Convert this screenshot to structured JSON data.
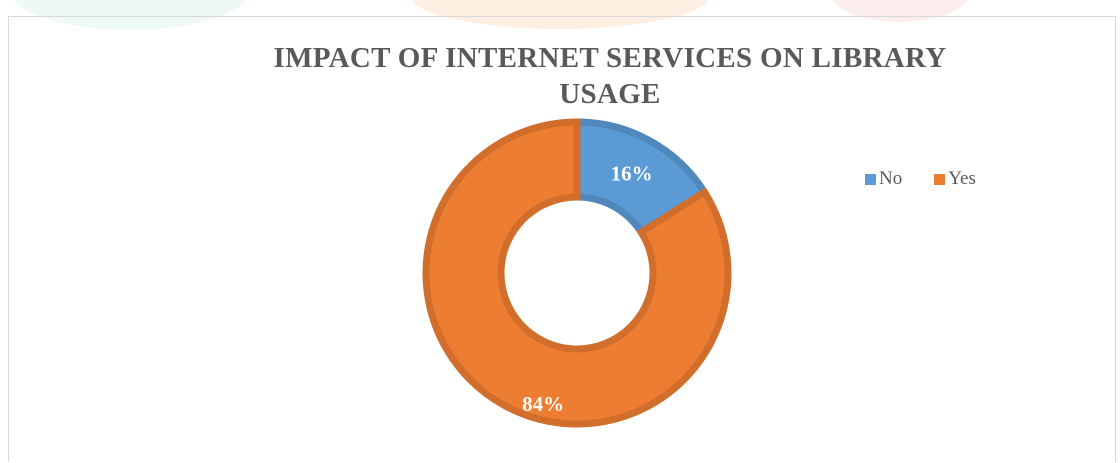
{
  "chart_data": {
    "type": "pie",
    "variant": "donut",
    "title": "IMPACT OF INTERNET SERVICES ON LIBRARY USAGE",
    "title_lines": [
      "IMPACT OF INTERNET SERVICES ON LIBRARY",
      "USAGE"
    ],
    "categories": [
      "No",
      "Yes"
    ],
    "values": [
      16,
      84
    ],
    "data_labels": [
      "16%",
      "84%"
    ],
    "unit": "%",
    "colors": [
      "#5b9bd5",
      "#ed7d31"
    ],
    "legend_position": "right"
  }
}
